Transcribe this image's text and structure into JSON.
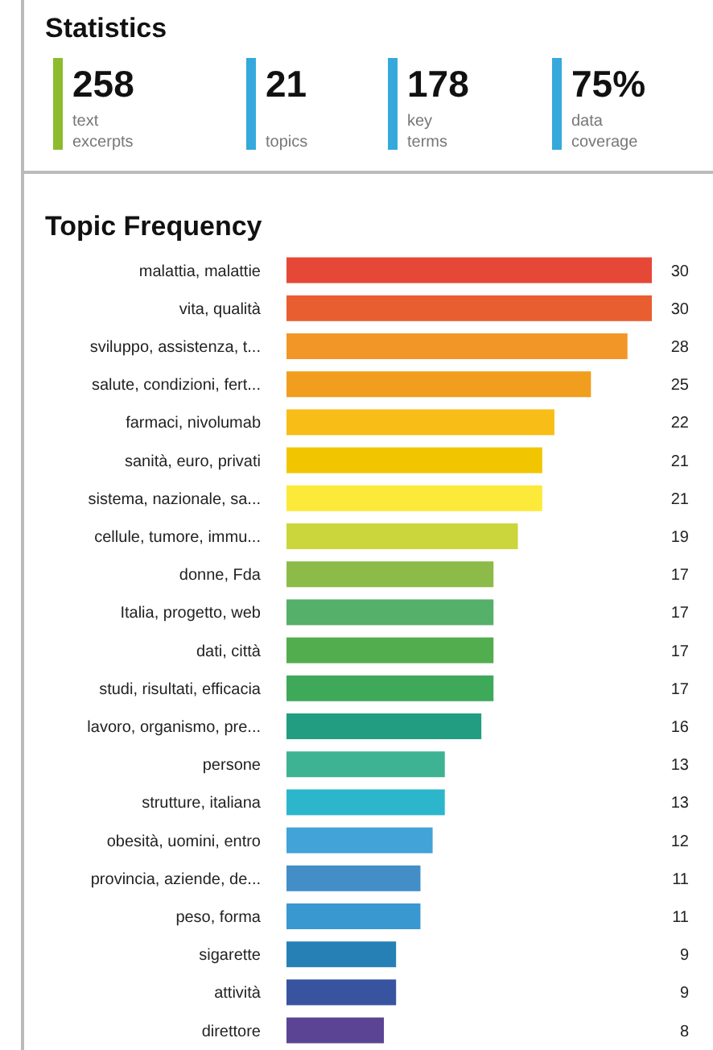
{
  "chart_data": [
    {
      "type": "other",
      "title": "Statistics",
      "categories": [
        "text excerpts",
        "topics",
        "key terms",
        "data coverage"
      ],
      "values": [
        258,
        21,
        178,
        75
      ],
      "value_labels": [
        "258",
        "21",
        "178",
        "75%"
      ],
      "colors": [
        "#8dbb2e",
        "#35a9dc",
        "#35a9dc",
        "#35a9dc"
      ]
    },
    {
      "type": "bar",
      "orientation": "horizontal",
      "title": "Topic Frequency",
      "data_labels": true,
      "categories": [
        "malattia, malattie",
        "vita, qualità",
        "sviluppo, assistenza, t...",
        "salute, condizioni, fert...",
        "farmaci, nivolumab",
        "sanità, euro, privati",
        "sistema, nazionale, sa...",
        "cellule, tumore, immu...",
        "donne, Fda",
        "Italia, progetto, web",
        "dati, città",
        "studi, risultati, efficacia",
        "lavoro, organismo, pre...",
        "persone",
        "strutture, italiana",
        "obesità, uomini, entro",
        "provincia, aziende, de...",
        "peso, forma",
        "sigarette",
        "attività",
        "direttore"
      ],
      "values": [
        30,
        30,
        28,
        25,
        22,
        21,
        21,
        19,
        17,
        17,
        17,
        17,
        16,
        13,
        13,
        12,
        11,
        11,
        9,
        9,
        8
      ],
      "colors": [
        "#e64838",
        "#e95e30",
        "#f29628",
        "#f19e1e",
        "#f8bd17",
        "#f1c500",
        "#fde93a",
        "#cad63b",
        "#8dbb4a",
        "#55b06a",
        "#52ad4e",
        "#3fa95a",
        "#229d82",
        "#3eb394",
        "#2cb6cc",
        "#41a3d8",
        "#438ec7",
        "#3a98d1",
        "#2680b6",
        "#3853a0",
        "#5b4493"
      ]
    }
  ]
}
